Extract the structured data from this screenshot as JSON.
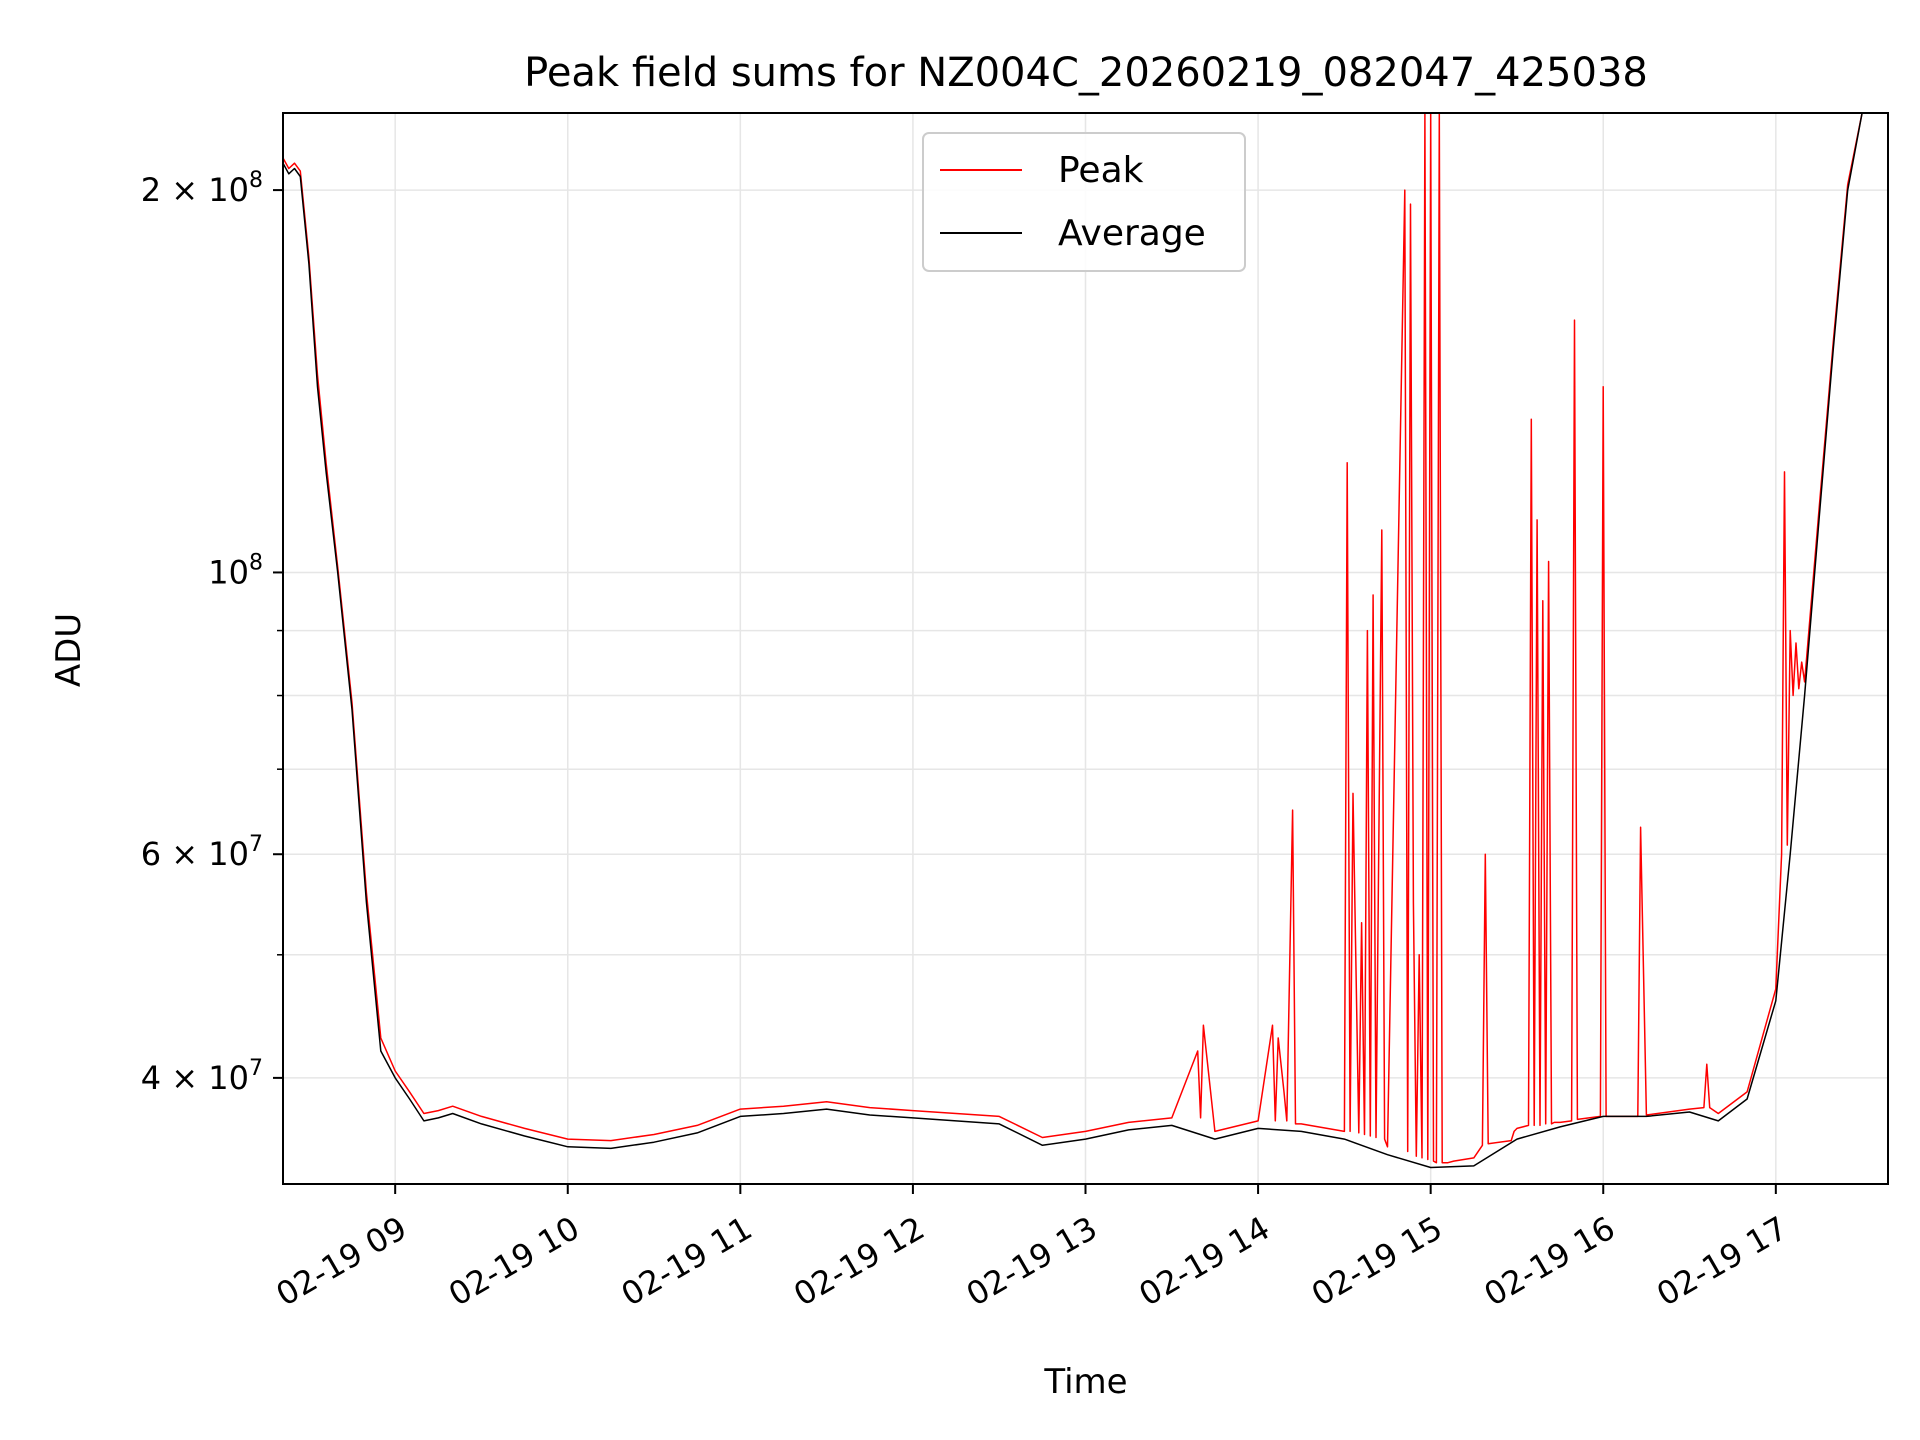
{
  "chart_data": {
    "type": "line",
    "title": "Peak field sums for NZ004C_20260219_082047_425038",
    "xlabel": "Time",
    "ylabel": "ADU",
    "yscale": "log",
    "grid": true,
    "legend_position": "upper center",
    "xlim": [
      "02-19 08:21",
      "02-19 17:39"
    ],
    "ylim": [
      33000000,
      230000000
    ],
    "x_ticks": [
      "02-19 09",
      "02-19 10",
      "02-19 11",
      "02-19 12",
      "02-19 13",
      "02-19 14",
      "02-19 15",
      "02-19 16",
      "02-19 17"
    ],
    "y_ticks": [
      {
        "value": 40000000,
        "label": "4 × 10",
        "exp": "7"
      },
      {
        "value": 60000000,
        "label": "6 × 10",
        "exp": "7"
      },
      {
        "value": 100000000,
        "label": "10",
        "exp": "8"
      },
      {
        "value": 200000000,
        "label": "2 × 10",
        "exp": "8"
      }
    ],
    "y_minor_ticks": [
      50000000,
      70000000,
      80000000,
      90000000
    ],
    "series": [
      {
        "name": "Average",
        "color": "#000000",
        "x": [
          "02-19 08:21",
          "02-19 08:23",
          "02-19 08:25",
          "02-19 08:27",
          "02-19 08:30",
          "02-19 08:33",
          "02-19 08:36",
          "02-19 08:40",
          "02-19 08:45",
          "02-19 08:50",
          "02-19 08:55",
          "02-19 09:00",
          "02-19 09:05",
          "02-19 09:10",
          "02-19 09:15",
          "02-19 09:20",
          "02-19 09:30",
          "02-19 09:45",
          "02-19 10:00",
          "02-19 10:15",
          "02-19 10:30",
          "02-19 10:45",
          "02-19 11:00",
          "02-19 11:15",
          "02-19 11:30",
          "02-19 11:45",
          "02-19 12:00",
          "02-19 12:15",
          "02-19 12:30",
          "02-19 12:45",
          "02-19 13:00",
          "02-19 13:15",
          "02-19 13:30",
          "02-19 13:45",
          "02-19 14:00",
          "02-19 14:15",
          "02-19 14:30",
          "02-19 14:45",
          "02-19 15:00",
          "02-19 15:15",
          "02-19 15:30",
          "02-19 15:45",
          "02-19 16:00",
          "02-19 16:15",
          "02-19 16:30",
          "02-19 16:40",
          "02-19 16:50",
          "02-19 17:00",
          "02-19 17:05",
          "02-19 17:10",
          "02-19 17:15",
          "02-19 17:20",
          "02-19 17:25",
          "02-19 17:30",
          "02-19 17:39"
        ],
        "y": [
          210000000,
          206000000,
          208000000,
          205000000,
          175000000,
          140000000,
          120000000,
          100000000,
          78000000,
          55000000,
          42000000,
          40000000,
          38500000,
          37000000,
          37200000,
          37500000,
          36800000,
          36000000,
          35300000,
          35200000,
          35600000,
          36200000,
          37300000,
          37500000,
          37800000,
          37400000,
          37200000,
          37000000,
          36800000,
          35400000,
          35800000,
          36400000,
          36700000,
          35800000,
          36500000,
          36300000,
          35800000,
          34800000,
          34000000,
          34100000,
          35800000,
          36600000,
          37300000,
          37300000,
          37600000,
          37000000,
          38500000,
          46000000,
          60000000,
          80000000,
          110000000,
          150000000,
          200000000,
          230000000,
          230000000
        ]
      },
      {
        "name": "Peak",
        "color": "#ff0000",
        "x": [
          "02-19 08:21",
          "02-19 08:23",
          "02-19 08:25",
          "02-19 08:27",
          "02-19 08:30",
          "02-19 08:33",
          "02-19 08:36",
          "02-19 08:40",
          "02-19 08:45",
          "02-19 08:50",
          "02-19 08:55",
          "02-19 09:00",
          "02-19 09:05",
          "02-19 09:10",
          "02-19 09:15",
          "02-19 09:20",
          "02-19 09:30",
          "02-19 09:45",
          "02-19 10:00",
          "02-19 10:15",
          "02-19 10:30",
          "02-19 10:45",
          "02-19 11:00",
          "02-19 11:15",
          "02-19 11:30",
          "02-19 11:45",
          "02-19 12:00",
          "02-19 12:15",
          "02-19 12:30",
          "02-19 12:45",
          "02-19 13:00",
          "02-19 13:15",
          "02-19 13:30",
          "02-19 13:39",
          "02-19 13:40",
          "02-19 13:41",
          "02-19 13:45",
          "02-19 14:00",
          "02-19 14:05",
          "02-19 14:06",
          "02-19 14:07",
          "02-19 14:09",
          "02-19 14:10",
          "02-19 14:12",
          "02-19 14:13",
          "02-19 14:15",
          "02-19 14:30",
          "02-19 14:31",
          "02-19 14:32",
          "02-19 14:33",
          "02-19 14:35",
          "02-19 14:36",
          "02-19 14:37",
          "02-19 14:38",
          "02-19 14:39",
          "02-19 14:40",
          "02-19 14:41",
          "02-19 14:43",
          "02-19 14:44",
          "02-19 14:45",
          "02-19 14:51",
          "02-19 14:52",
          "02-19 14:53",
          "02-19 14:54",
          "02-19 14:55",
          "02-19 14:56",
          "02-19 14:57",
          "02-19 14:58",
          "02-19 14:59",
          "02-19 15:00",
          "02-19 15:01",
          "02-19 15:02",
          "02-19 15:03",
          "02-19 15:04",
          "02-19 15:05",
          "02-19 15:06",
          "02-19 15:08",
          "02-19 15:15",
          "02-19 15:18",
          "02-19 15:19",
          "02-19 15:20",
          "02-19 15:28",
          "02-19 15:29",
          "02-19 15:30",
          "02-19 15:34",
          "02-19 15:35",
          "02-19 15:36",
          "02-19 15:37",
          "02-19 15:38",
          "02-19 15:39",
          "02-19 15:40",
          "02-19 15:41",
          "02-19 15:42",
          "02-19 15:43",
          "02-19 15:44",
          "02-19 15:45",
          "02-19 15:49",
          "02-19 15:50",
          "02-19 15:51",
          "02-19 15:55",
          "02-19 15:59",
          "02-19 16:00",
          "02-19 16:01",
          "02-19 16:10",
          "02-19 16:12",
          "02-19 16:13",
          "02-19 16:15",
          "02-19 16:30",
          "02-19 16:35",
          "02-19 16:36",
          "02-19 16:37",
          "02-19 16:40",
          "02-19 16:50",
          "02-19 17:00",
          "02-19 17:02",
          "02-19 17:03",
          "02-19 17:04",
          "02-19 17:05",
          "02-19 17:06",
          "02-19 17:07",
          "02-19 17:08",
          "02-19 17:09",
          "02-19 17:10",
          "02-19 17:15",
          "02-19 17:20",
          "02-19 17:25",
          "02-19 17:30",
          "02-19 17:39"
        ],
        "y": [
          212000000,
          208000000,
          210000000,
          207000000,
          177000000,
          143000000,
          122000000,
          101000000,
          79000000,
          56000000,
          43000000,
          40500000,
          39000000,
          37500000,
          37700000,
          38000000,
          37300000,
          36500000,
          35800000,
          35700000,
          36100000,
          36700000,
          37800000,
          38000000,
          38300000,
          37900000,
          37700000,
          37500000,
          37300000,
          35900000,
          36300000,
          36900000,
          37200000,
          42000000,
          37200000,
          44000000,
          36300000,
          37000000,
          44000000,
          37000000,
          43000000,
          39000000,
          37000000,
          65000000,
          36800000,
          36800000,
          36300000,
          122000000,
          36300000,
          67000000,
          36200000,
          53000000,
          36100000,
          90000000,
          36000000,
          96000000,
          35900000,
          108000000,
          35800000,
          35300000,
          200000000,
          35000000,
          195000000,
          55000000,
          34700000,
          50000000,
          34600000,
          240000000,
          34500000,
          230000000,
          34400000,
          34300000,
          240000000,
          34300000,
          34300000,
          34300000,
          34400000,
          34600000,
          35400000,
          60000000,
          35500000,
          35700000,
          36300000,
          36500000,
          36700000,
          132000000,
          36700000,
          110000000,
          36700000,
          95000000,
          36800000,
          102000000,
          36800000,
          36900000,
          36900000,
          36900000,
          37000000,
          158000000,
          37100000,
          37200000,
          37300000,
          140000000,
          37300000,
          37300000,
          37300000,
          63000000,
          37400000,
          37800000,
          37900000,
          41000000,
          37900000,
          37500000,
          39000000,
          47000000,
          60000000,
          120000000,
          61000000,
          90000000,
          80000000,
          88000000,
          81000000,
          85000000,
          82000000,
          112000000,
          152000000,
          202000000,
          232000000,
          232000000
        ]
      }
    ]
  },
  "legend": {
    "items": [
      {
        "name": "Peak",
        "color": "#ff0000"
      },
      {
        "name": "Average",
        "color": "#000000"
      }
    ]
  }
}
